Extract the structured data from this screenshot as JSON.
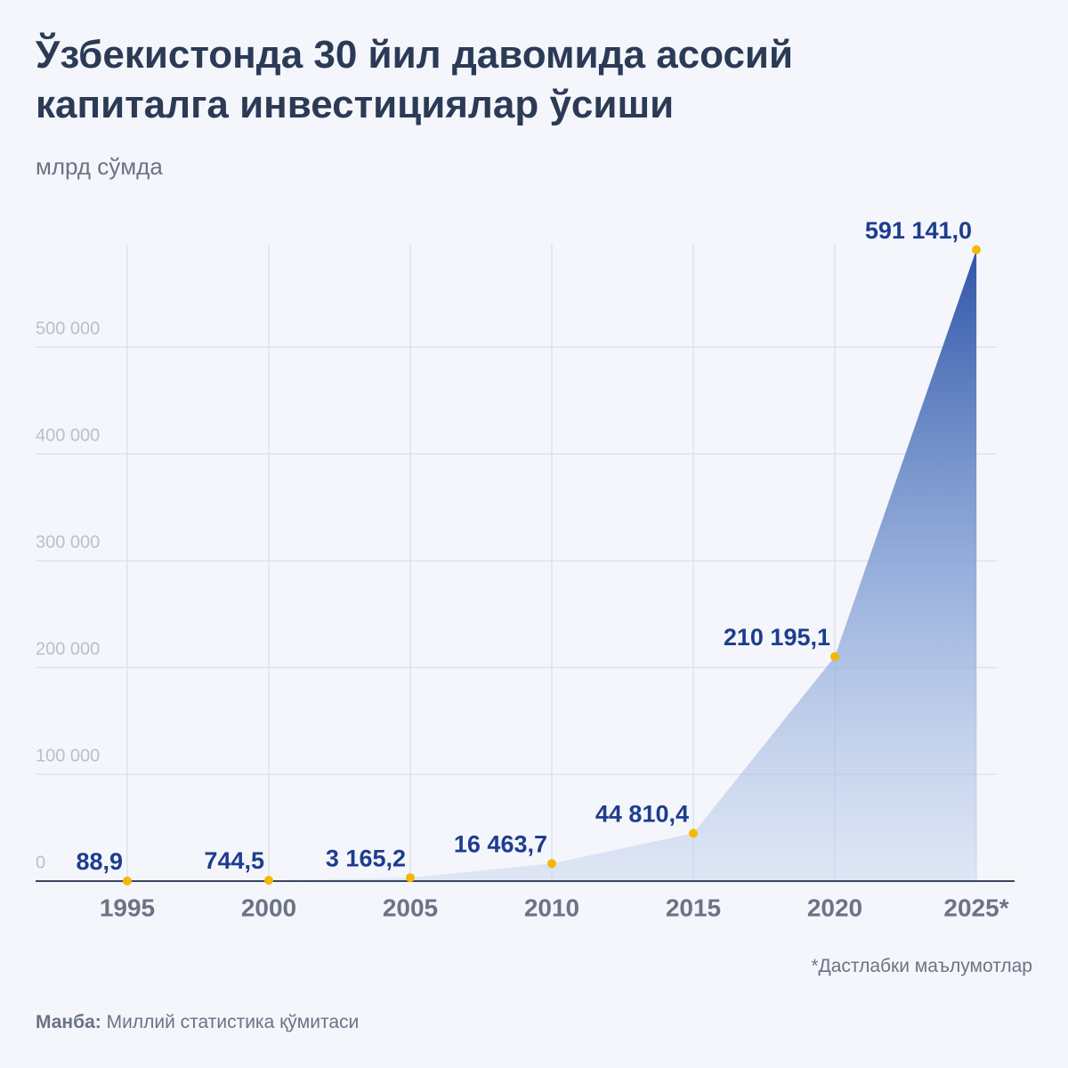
{
  "chart_data": {
    "type": "area",
    "title": "Ўзбекистонда 30 йил давомида асосий капиталга инвестициялар ўсиши",
    "subtitle": "млрд сўмда",
    "categories": [
      "1995",
      "2000",
      "2005",
      "2010",
      "2015",
      "2020",
      "2025*"
    ],
    "values": [
      88.9,
      744.5,
      3165.2,
      16463.7,
      44810.4,
      210195.1,
      591141.0
    ],
    "value_labels": [
      "88,9",
      "744,5",
      "3 165,2",
      "16 463,7",
      "44 810,4",
      "210 195,1",
      "591 141,0"
    ],
    "color": "#2f55a8",
    "marker_color": "#f5b800",
    "ylim": [
      0,
      600000
    ],
    "yticks": [
      0,
      {
        "value": 100000,
        "label": "100 000"
      },
      {
        "value": 200000,
        "label": "200 000"
      },
      {
        "value": 300000,
        "label": "300 000"
      },
      {
        "value": 400000,
        "label": "400 000"
      },
      {
        "value": 500000,
        "label": "500 000"
      }
    ],
    "grid": true,
    "note": "*Дастлабки маълумотлар",
    "source_label": "Манба:",
    "source": "Миллий статистика қўмитаси"
  }
}
